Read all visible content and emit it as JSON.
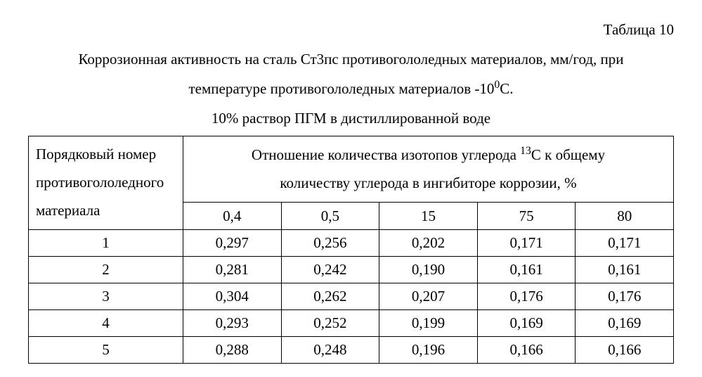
{
  "table_label": "Таблица 10",
  "caption_line1": "Коррозионная активность на сталь Ст3пс противогололедных материалов, мм/год, при",
  "caption_line2_pre": "температуре противогололедных материалов -10",
  "caption_line2_sup": "0",
  "caption_line2_post": "С.",
  "caption_line3": "10% раствор ПГМ в дистиллированной воде",
  "row_header_l1": "Порядковый номер",
  "row_header_l2": "противогололедного",
  "row_header_l3": "материала",
  "group_header_l1_pre": "Отношение количества изотопов углерода ",
  "group_header_l1_sup": "13",
  "group_header_l1_post": "С к общему",
  "group_header_l2": "количеству углерода в ингибиторе коррозии, %",
  "columns": [
    "0,4",
    "0,5",
    "15",
    "75",
    "80"
  ],
  "rows": [
    {
      "id": "1",
      "vals": [
        "0,297",
        "0,256",
        "0,202",
        "0,171",
        "0,171"
      ]
    },
    {
      "id": "2",
      "vals": [
        "0,281",
        "0,242",
        "0,190",
        "0,161",
        "0,161"
      ]
    },
    {
      "id": "3",
      "vals": [
        "0,304",
        "0,262",
        "0,207",
        "0,176",
        "0,176"
      ]
    },
    {
      "id": "4",
      "vals": [
        "0,293",
        "0,252",
        "0,199",
        "0,169",
        "0,169"
      ]
    },
    {
      "id": "5",
      "vals": [
        "0,288",
        "0,248",
        "0,196",
        "0,166",
        "0,166"
      ]
    }
  ],
  "style": {
    "font_family": "Times New Roman",
    "font_size_pt": 16,
    "border_color": "#000000",
    "background_color": "#ffffff",
    "text_color": "#000000"
  }
}
